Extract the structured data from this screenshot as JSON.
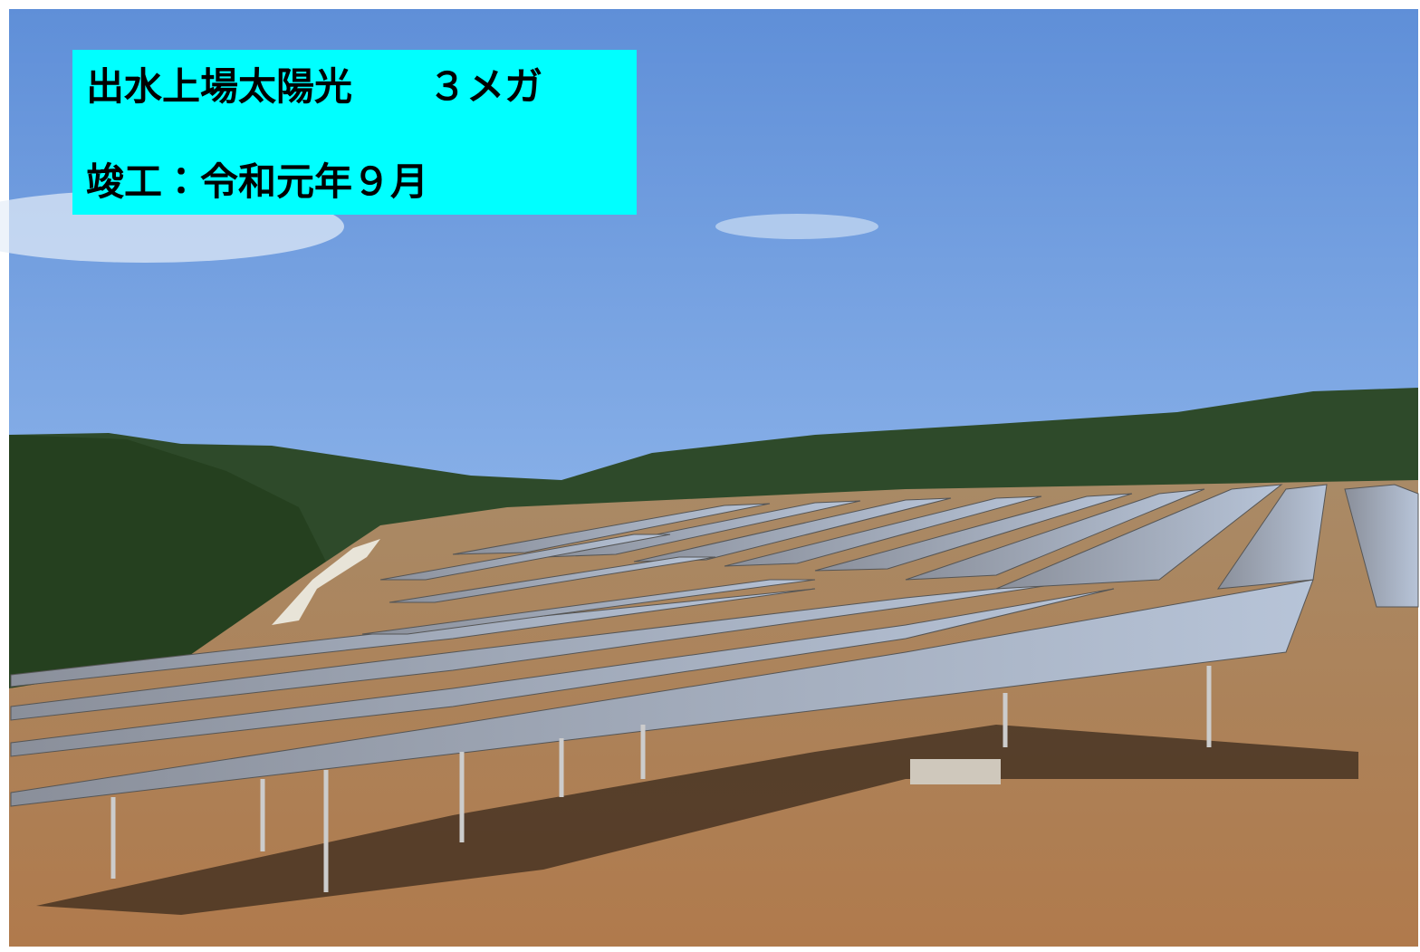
{
  "overlay": {
    "title": "出水上場太陽光　　３メガ",
    "completion": "竣工：令和元年９月"
  }
}
